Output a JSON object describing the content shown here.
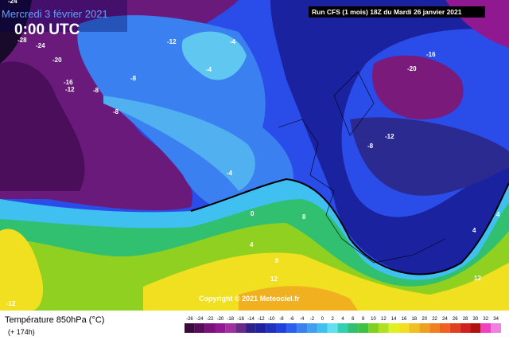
{
  "header": {
    "date": "Mercredi 3 février 2021",
    "time": "0:00 UTC",
    "run": "Run CFS (1 mois) 18Z du Mardi 26 janvier 2021"
  },
  "map": {
    "contour_labels": [
      "-24",
      "-28",
      "-24",
      "-20",
      "-16",
      "-12",
      "-8",
      "-8",
      "-12",
      "-4",
      "-4",
      "-8",
      "-4",
      "0",
      "4",
      "8",
      "8",
      "12",
      "-12",
      "-16",
      "-20",
      "-12",
      "-8",
      "4",
      "4",
      "12"
    ]
  },
  "copyright": "Copyright © 2021 Meteociel.fr",
  "legend": {
    "title": "Température 850hPa (°C)",
    "lead": "(+ 174h)",
    "ticks": [
      "-26",
      "-24",
      "-22",
      "-20",
      "-18",
      "-16",
      "-14",
      "-12",
      "-10",
      "-8",
      "-6",
      "-4",
      "-2",
      "0",
      "2",
      "4",
      "6",
      "8",
      "10",
      "12",
      "14",
      "16",
      "18",
      "20",
      "22",
      "24",
      "26",
      "28",
      "30",
      "32",
      "34"
    ],
    "colors": [
      "#3a0a3a",
      "#5a0a5a",
      "#7a107a",
      "#901890",
      "#a030a0",
      "#6a2a8a",
      "#30208a",
      "#2020a0",
      "#2030c0",
      "#2040e0",
      "#2a60f0",
      "#3a80f0",
      "#40a0f0",
      "#40c0f0",
      "#60e0f0",
      "#30d0b0",
      "#30c070",
      "#40c040",
      "#80d020",
      "#b0e020",
      "#e0f020",
      "#f0e020",
      "#f0c020",
      "#f0a020",
      "#f08020",
      "#f06020",
      "#e04020",
      "#d02020",
      "#b01010",
      "#f040c0",
      "#f080e0"
    ]
  }
}
